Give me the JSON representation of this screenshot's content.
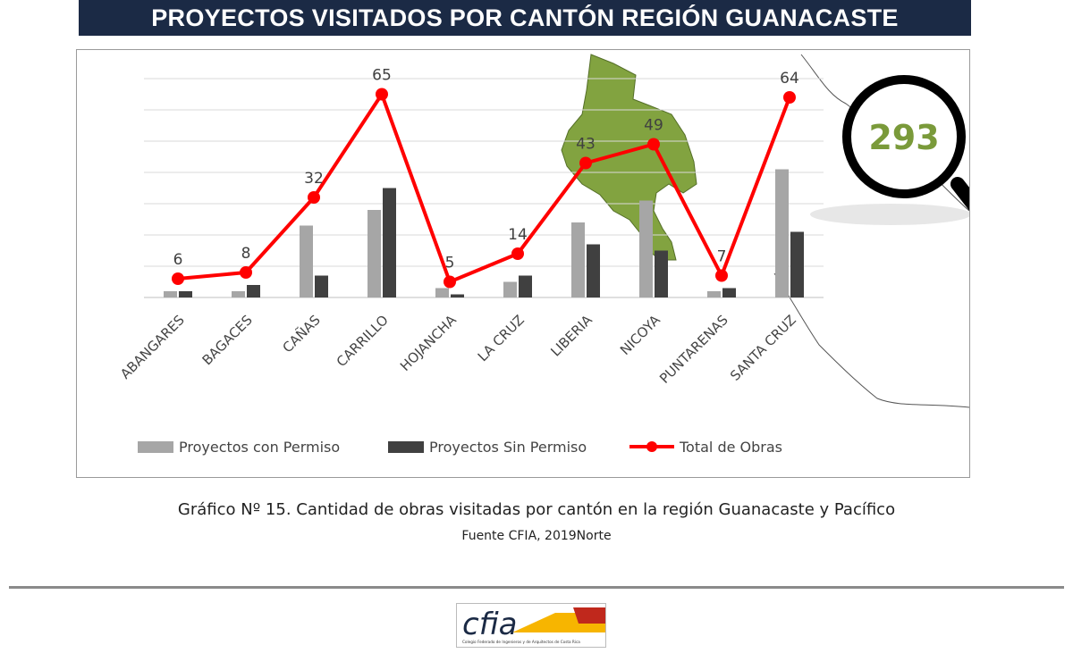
{
  "header": {
    "title": "PROYECTOS VISITADOS POR CANTÓN REGIÓN GUANACASTE"
  },
  "magnifier": {
    "value": "293",
    "color": "#7a9a3a"
  },
  "caption": {
    "line1": "Gráfico Nº 15. Cantidad de obras visitadas por cantón en la región Guanacaste y Pacífico",
    "line2": "Fuente CFIA, 2019Norte"
  },
  "logo": {
    "text": "cfia",
    "subtitle": "Colegio Federado de Ingenieros y de Arquitectos de Costa Rica"
  },
  "colors": {
    "con_permiso": "#a6a6a6",
    "sin_permiso": "#404040",
    "total": "#ff0000",
    "map": "#7ea13a",
    "banner": "#1b2a45"
  },
  "chart_data": {
    "type": "bar",
    "categories": [
      "ABANGARES",
      "BAGACES",
      "CAÑAS",
      "CARRILLO",
      "HOJANCHA",
      "LA CRUZ",
      "LIBERIA",
      "NICOYA",
      "PUNTARENAS",
      "SANTA CRUZ"
    ],
    "series": [
      {
        "name": "Proyectos con Permiso",
        "type": "bar",
        "values": [
          2,
          2,
          23,
          28,
          3,
          5,
          24,
          31,
          2,
          41
        ]
      },
      {
        "name": "Proyectos Sin Permiso",
        "type": "bar",
        "values": [
          2,
          4,
          7,
          35,
          1,
          7,
          17,
          15,
          3,
          21
        ]
      },
      {
        "name": "Total de Obras",
        "type": "line",
        "values": [
          6,
          8,
          32,
          65,
          5,
          14,
          43,
          49,
          7,
          64
        ],
        "labels": [
          "6",
          "8",
          "32",
          "65",
          "5",
          "14",
          "43",
          "49",
          "7",
          "64"
        ]
      }
    ],
    "ylim": [
      0,
      70
    ],
    "grid": true,
    "legend": "bottom"
  }
}
